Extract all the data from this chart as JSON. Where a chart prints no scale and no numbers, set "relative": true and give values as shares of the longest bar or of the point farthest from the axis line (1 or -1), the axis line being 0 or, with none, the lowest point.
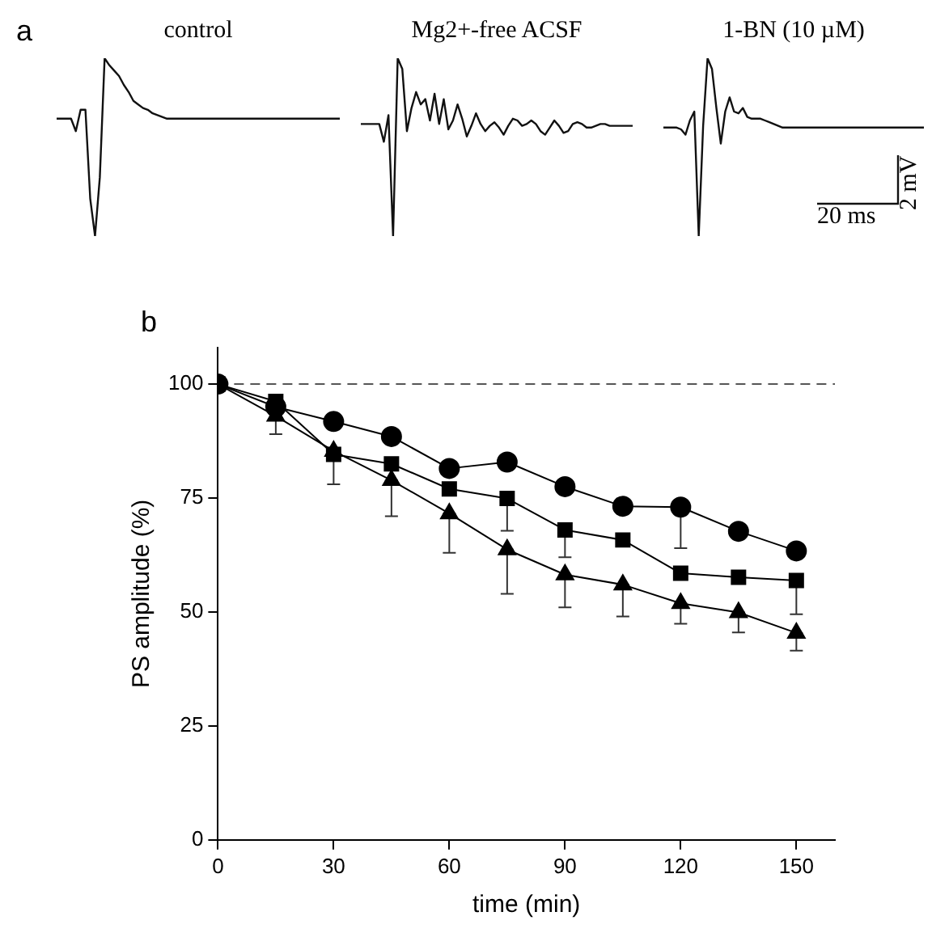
{
  "chart_data": [
    {
      "type": "line",
      "relative": true,
      "title": "control",
      "annotations": [
        "a"
      ],
      "categories": [
        null,
        null,
        null,
        null,
        null,
        null,
        null,
        null,
        null,
        null,
        null,
        null,
        null,
        null,
        null,
        null,
        null,
        null,
        null,
        null,
        null,
        null,
        null,
        null,
        null,
        null,
        null,
        null,
        null,
        null,
        null,
        null,
        null,
        null,
        null,
        null,
        null,
        null,
        null,
        null,
        null,
        null,
        null,
        null,
        null,
        null,
        null,
        null,
        null,
        null,
        null,
        null,
        null,
        null,
        null,
        null,
        null,
        null,
        null,
        null
      ],
      "series": [
        {
          "color": "#111111",
          "values": [
            0.66,
            0.66,
            0.66,
            0.66,
            0.59,
            0.71,
            0.71,
            0.21,
            0,
            0.33,
            1,
            0.96,
            0.93,
            0.9,
            0.85,
            0.81,
            0.76,
            0.74,
            0.72,
            0.71,
            0.69,
            0.68,
            0.67,
            0.66,
            0.66,
            0.66,
            0.66,
            0.66,
            0.66,
            0.66,
            0.66,
            0.66,
            0.66,
            0.66,
            0.66,
            0.66,
            0.66,
            0.66,
            0.66,
            0.66,
            0.66,
            0.66,
            0.66,
            0.66,
            0.66,
            0.66,
            0.66,
            0.66,
            0.66,
            0.66,
            0.66,
            0.66,
            0.66,
            0.66,
            0.66,
            0.66,
            0.66,
            0.66,
            0.66,
            0.66
          ]
        }
      ]
    },
    {
      "type": "line",
      "relative": true,
      "title": "Mg2+-free ACSF",
      "categories": [
        null,
        null,
        null,
        null,
        null,
        null,
        null,
        null,
        null,
        null,
        null,
        null,
        null,
        null,
        null,
        null,
        null,
        null,
        null,
        null,
        null,
        null,
        null,
        null,
        null,
        null,
        null,
        null,
        null,
        null,
        null,
        null,
        null,
        null,
        null,
        null,
        null,
        null,
        null,
        null,
        null,
        null,
        null,
        null,
        null,
        null,
        null,
        null,
        null,
        null,
        null,
        null,
        null,
        null,
        null,
        null,
        null,
        null,
        null,
        null
      ],
      "series": [
        {
          "color": "#111111",
          "values": [
            0.63,
            0.63,
            0.63,
            0.63,
            0.63,
            0.53,
            0.68,
            0,
            1,
            0.94,
            0.59,
            0.72,
            0.81,
            0.74,
            0.77,
            0.65,
            0.8,
            0.63,
            0.77,
            0.6,
            0.65,
            0.74,
            0.66,
            0.56,
            0.62,
            0.69,
            0.63,
            0.59,
            0.62,
            0.64,
            0.61,
            0.57,
            0.62,
            0.66,
            0.65,
            0.62,
            0.63,
            0.65,
            0.63,
            0.59,
            0.57,
            0.61,
            0.65,
            0.62,
            0.58,
            0.59,
            0.63,
            0.64,
            0.63,
            0.61,
            0.61,
            0.62,
            0.63,
            0.63,
            0.62,
            0.62,
            0.62,
            0.62,
            0.62,
            0.62
          ]
        }
      ]
    },
    {
      "type": "line",
      "relative": true,
      "title": "1-BN (10 µM)",
      "annotations": [
        "2 mV",
        "20 ms"
      ],
      "categories": [
        null,
        null,
        null,
        null,
        null,
        null,
        null,
        null,
        null,
        null,
        null,
        null,
        null,
        null,
        null,
        null,
        null,
        null,
        null,
        null,
        null,
        null,
        null,
        null,
        null,
        null,
        null,
        null,
        null,
        null,
        null,
        null,
        null,
        null,
        null,
        null,
        null,
        null,
        null,
        null,
        null,
        null,
        null,
        null,
        null,
        null,
        null,
        null,
        null,
        null,
        null,
        null,
        null,
        null,
        null,
        null,
        null,
        null,
        null,
        null
      ],
      "series": [
        {
          "color": "#111111",
          "values": [
            0.61,
            0.61,
            0.61,
            0.61,
            0.6,
            0.57,
            0.65,
            0.7,
            0,
            0.62,
            1,
            0.94,
            0.72,
            0.52,
            0.7,
            0.78,
            0.7,
            0.69,
            0.72,
            0.67,
            0.66,
            0.66,
            0.66,
            0.65,
            0.64,
            0.63,
            0.62,
            0.61,
            0.61,
            0.61,
            0.61,
            0.61,
            0.61,
            0.61,
            0.61,
            0.61,
            0.61,
            0.61,
            0.61,
            0.61,
            0.61,
            0.61,
            0.61,
            0.61,
            0.61,
            0.61,
            0.61,
            0.61,
            0.61,
            0.61,
            0.61,
            0.61,
            0.61,
            0.61,
            0.61,
            0.61,
            0.61,
            0.61,
            0.61,
            0.61
          ]
        }
      ]
    },
    {
      "type": "line",
      "xlabel": "time (min)",
      "ylabel": "PS amplitude (%)",
      "annotations": [
        "b"
      ],
      "x": [
        0,
        15,
        30,
        45,
        60,
        75,
        90,
        105,
        120,
        135,
        150
      ],
      "xlim": [
        0,
        160
      ],
      "xticks": [
        0,
        30,
        60,
        90,
        120,
        150
      ],
      "ylim": [
        0,
        108
      ],
      "yticks": [
        0,
        25,
        50,
        75,
        100
      ],
      "grid": false,
      "legend": false,
      "ref_lines": [
        {
          "axis": "y",
          "value": 100,
          "color": "#555555",
          "line_style": "dashed"
        }
      ],
      "series": [
        {
          "color": "#000000",
          "marker": "circle",
          "values": [
            100,
            95,
            91.8,
            88.5,
            81.5,
            82.9,
            77.5,
            73.2,
            73,
            67.7,
            63.4
          ],
          "errors": [
            null,
            null,
            null,
            null,
            null,
            null,
            null,
            null,
            [
              64,
              73
            ],
            null,
            null
          ]
        },
        {
          "color": "#000000",
          "marker": "square",
          "values": [
            100,
            96.2,
            84.6,
            82.5,
            77,
            74.9,
            68,
            65.8,
            58.5,
            57.6,
            56.9
          ],
          "errors": [
            null,
            null,
            null,
            null,
            null,
            [
              67.8,
              74.9
            ],
            [
              62,
              68
            ],
            null,
            null,
            null,
            [
              49.5,
              56.9
            ]
          ]
        },
        {
          "color": "#000000",
          "marker": "triangle",
          "values": [
            100,
            93,
            85.3,
            78.9,
            71.6,
            63.7,
            58.2,
            56,
            51.9,
            49.9,
            45.4
          ],
          "errors": [
            null,
            [
              89,
              93
            ],
            [
              78,
              85.3
            ],
            [
              71,
              78.9
            ],
            [
              63,
              71.6
            ],
            [
              54,
              63.7
            ],
            [
              51,
              58.2
            ],
            [
              49,
              56
            ],
            [
              47.4,
              51.9
            ],
            [
              45.5,
              49.9
            ],
            [
              41.5,
              45.4
            ]
          ]
        }
      ]
    }
  ]
}
